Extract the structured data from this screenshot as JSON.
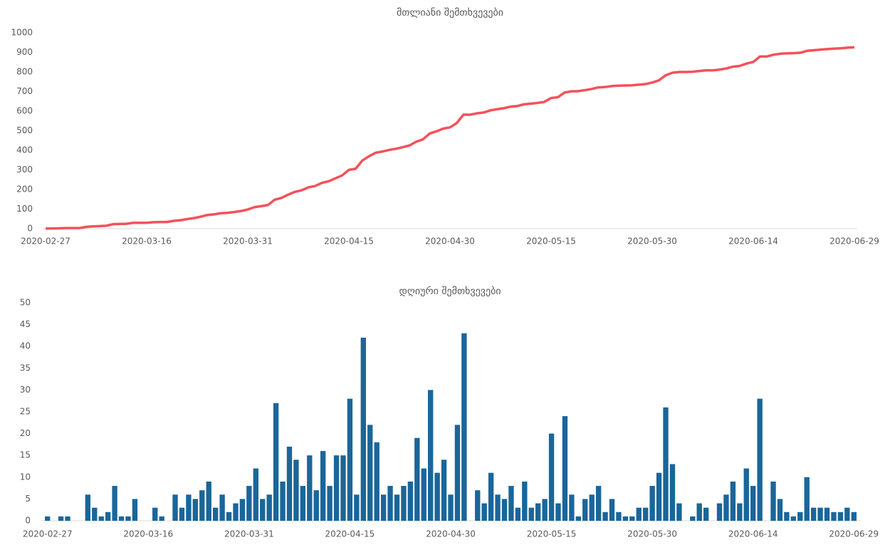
{
  "chart_data": [
    {
      "type": "line",
      "title": "მთლიანი შემთხვევები",
      "categories": [
        "2020-02-27",
        null,
        null,
        null,
        null,
        null,
        null,
        null,
        null,
        null,
        null,
        null,
        null,
        null,
        null,
        "2020-03-16",
        null,
        null,
        null,
        null,
        null,
        null,
        null,
        null,
        null,
        null,
        null,
        null,
        null,
        null,
        "2020-03-31",
        null,
        null,
        null,
        null,
        null,
        null,
        null,
        null,
        null,
        null,
        null,
        null,
        null,
        null,
        "2020-04-15",
        null,
        null,
        null,
        null,
        null,
        null,
        null,
        null,
        null,
        null,
        null,
        null,
        null,
        null,
        "2020-04-30",
        null,
        null,
        null,
        null,
        null,
        null,
        null,
        null,
        null,
        null,
        null,
        null,
        null,
        null,
        "2020-05-15",
        null,
        null,
        null,
        null,
        null,
        null,
        null,
        null,
        null,
        null,
        null,
        null,
        null,
        null,
        "2020-05-30",
        null,
        null,
        null,
        null,
        null,
        null,
        null,
        null,
        null,
        null,
        null,
        null,
        null,
        null,
        "2020-06-14",
        null,
        null,
        null,
        null,
        null,
        null,
        null,
        null,
        null,
        null,
        null,
        null,
        null,
        null,
        "2020-06-29"
      ],
      "values": [
        1,
        1,
        2,
        3,
        3,
        3,
        9,
        12,
        13,
        15,
        23,
        24,
        25,
        30,
        30,
        30,
        33,
        34,
        34,
        40,
        43,
        49,
        54,
        61,
        70,
        73,
        79,
        81,
        85,
        90,
        98,
        110,
        115,
        121,
        148,
        157,
        174,
        188,
        196,
        211,
        218,
        234,
        242,
        257,
        272,
        300,
        306,
        348,
        370,
        388,
        394,
        402,
        408,
        416,
        425,
        444,
        456,
        486,
        497,
        511,
        517,
        539,
        582,
        582,
        589,
        593,
        604,
        610,
        615,
        623,
        626,
        635,
        638,
        642,
        647,
        667,
        671,
        695,
        701,
        702,
        707,
        713,
        721,
        723,
        728,
        730,
        731,
        732,
        735,
        738,
        746,
        757,
        783,
        796,
        800,
        800,
        801,
        805,
        808,
        808,
        812,
        818,
        827,
        831,
        843,
        851,
        879,
        879,
        888,
        893,
        895,
        896,
        898,
        908,
        911,
        914,
        917,
        919,
        921,
        924,
        926
      ],
      "color": "#f4515a",
      "ylim": [
        0,
        1000
      ],
      "yticks": [
        0,
        100,
        200,
        300,
        400,
        500,
        600,
        700,
        800,
        900,
        1000
      ]
    },
    {
      "type": "bar",
      "title": "დღიური შემთხვევები",
      "categories": [
        "2020-02-27",
        null,
        null,
        null,
        null,
        null,
        null,
        null,
        null,
        null,
        null,
        null,
        null,
        null,
        null,
        "2020-03-16",
        null,
        null,
        null,
        null,
        null,
        null,
        null,
        null,
        null,
        null,
        null,
        null,
        null,
        null,
        "2020-03-31",
        null,
        null,
        null,
        null,
        null,
        null,
        null,
        null,
        null,
        null,
        null,
        null,
        null,
        null,
        "2020-04-15",
        null,
        null,
        null,
        null,
        null,
        null,
        null,
        null,
        null,
        null,
        null,
        null,
        null,
        null,
        "2020-04-30",
        null,
        null,
        null,
        null,
        null,
        null,
        null,
        null,
        null,
        null,
        null,
        null,
        null,
        null,
        "2020-05-15",
        null,
        null,
        null,
        null,
        null,
        null,
        null,
        null,
        null,
        null,
        null,
        null,
        null,
        null,
        "2020-05-30",
        null,
        null,
        null,
        null,
        null,
        null,
        null,
        null,
        null,
        null,
        null,
        null,
        null,
        null,
        "2020-06-14",
        null,
        null,
        null,
        null,
        null,
        null,
        null,
        null,
        null,
        null,
        null,
        null,
        null,
        null,
        "2020-06-29"
      ],
      "values": [
        1,
        0,
        1,
        1,
        0,
        0,
        6,
        3,
        1,
        2,
        8,
        1,
        1,
        5,
        0,
        0,
        3,
        1,
        0,
        6,
        3,
        6,
        5,
        7,
        9,
        3,
        6,
        2,
        4,
        5,
        8,
        12,
        5,
        6,
        27,
        9,
        17,
        14,
        8,
        15,
        7,
        16,
        8,
        15,
        15,
        28,
        6,
        42,
        22,
        18,
        6,
        8,
        6,
        8,
        9,
        19,
        12,
        30,
        11,
        14,
        6,
        22,
        43,
        0,
        7,
        4,
        11,
        6,
        5,
        8,
        3,
        9,
        3,
        4,
        5,
        20,
        4,
        24,
        6,
        1,
        5,
        6,
        8,
        2,
        5,
        2,
        1,
        1,
        3,
        3,
        8,
        11,
        26,
        13,
        4,
        0,
        1,
        4,
        3,
        0,
        4,
        6,
        9,
        4,
        12,
        8,
        28,
        0,
        9,
        5,
        2,
        1,
        2,
        10,
        3,
        3,
        3,
        2,
        2,
        3,
        2
      ],
      "color": "#1a6699",
      "ylim": [
        0,
        50
      ],
      "yticks": [
        0,
        5,
        10,
        15,
        20,
        25,
        30,
        35,
        40,
        45,
        50
      ]
    }
  ]
}
